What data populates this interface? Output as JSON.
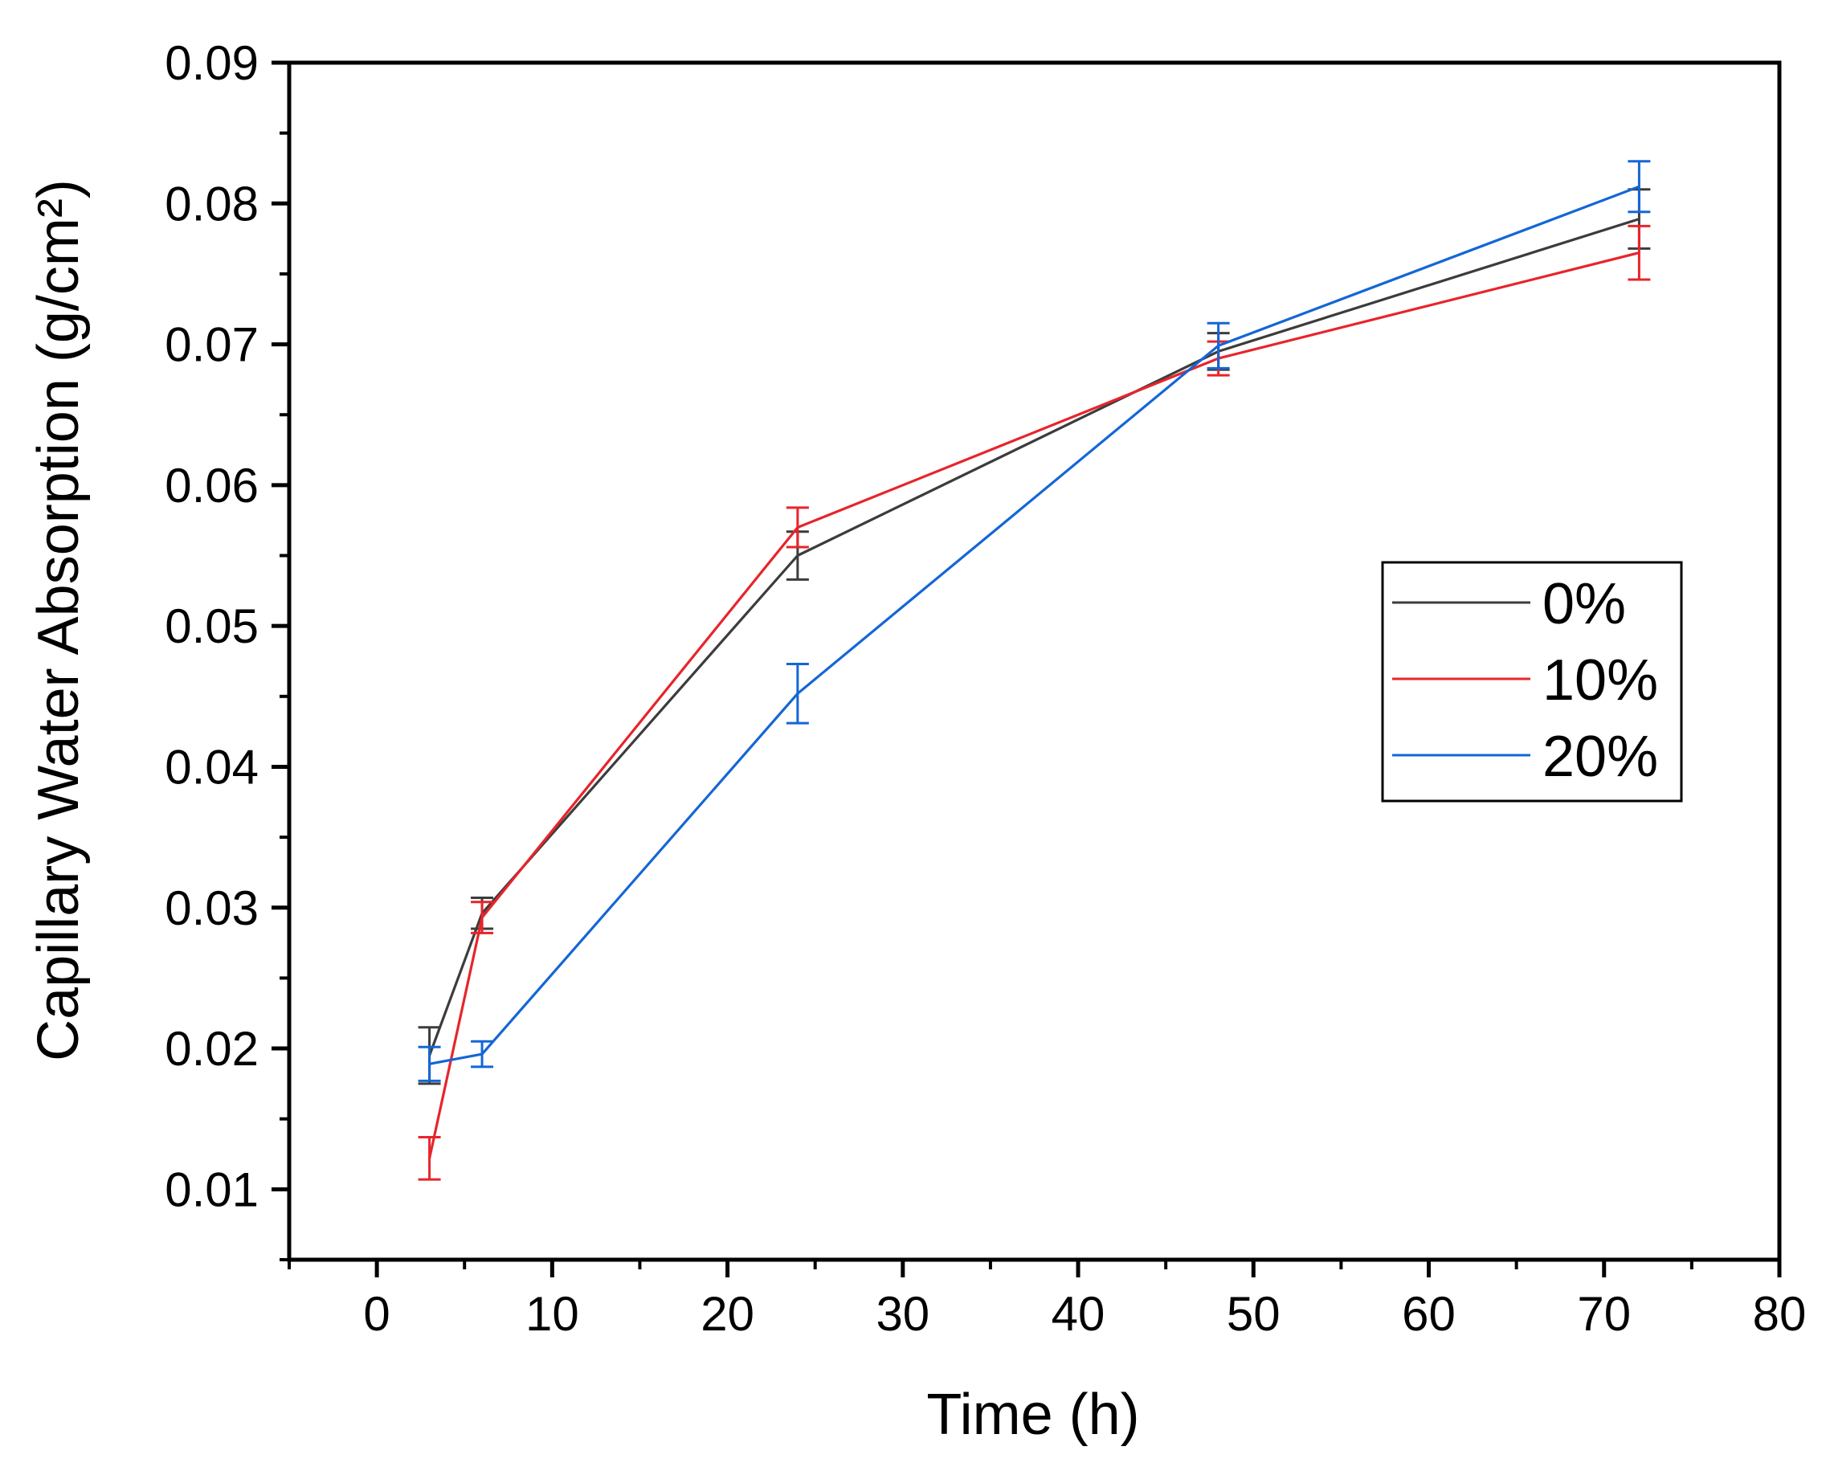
{
  "chart_data": {
    "type": "line",
    "title": "",
    "xlabel": "Time (h)",
    "ylabel": "Capillary Water Absorption (g/cm²)",
    "xlim": [
      -5,
      80
    ],
    "ylim": [
      0.005,
      0.09
    ],
    "xticks": [
      0,
      10,
      20,
      30,
      40,
      50,
      60,
      70,
      80
    ],
    "xtick_labels": [
      "0",
      "10",
      "20",
      "30",
      "40",
      "50",
      "60",
      "70",
      "80"
    ],
    "yticks": [
      0.01,
      0.02,
      0.03,
      0.04,
      0.05,
      0.06,
      0.07,
      0.08,
      0.09
    ],
    "ytick_labels": [
      "0.01",
      "0.02",
      "0.03",
      "0.04",
      "0.05",
      "0.06",
      "0.07",
      "0.08",
      "0.09"
    ],
    "grid": false,
    "legend": "right",
    "x": [
      3,
      6,
      24,
      48,
      72
    ],
    "series": [
      {
        "name": "0%",
        "color": "#3c3c3c",
        "values": [
          0.0195,
          0.0296,
          0.055,
          0.0695,
          0.0789
        ],
        "errors": [
          0.002,
          0.0011,
          0.0017,
          0.0013,
          0.0021
        ]
      },
      {
        "name": "10%",
        "color": "#e8242b",
        "values": [
          0.0122,
          0.0293,
          0.057,
          0.069,
          0.0765
        ],
        "errors": [
          0.0015,
          0.0011,
          0.0014,
          0.0012,
          0.0019
        ]
      },
      {
        "name": "20%",
        "color": "#1466d6",
        "values": [
          0.0189,
          0.0196,
          0.0452,
          0.0699,
          0.0812
        ],
        "errors": [
          0.0012,
          0.0009,
          0.0021,
          0.0016,
          0.0018
        ]
      }
    ]
  }
}
